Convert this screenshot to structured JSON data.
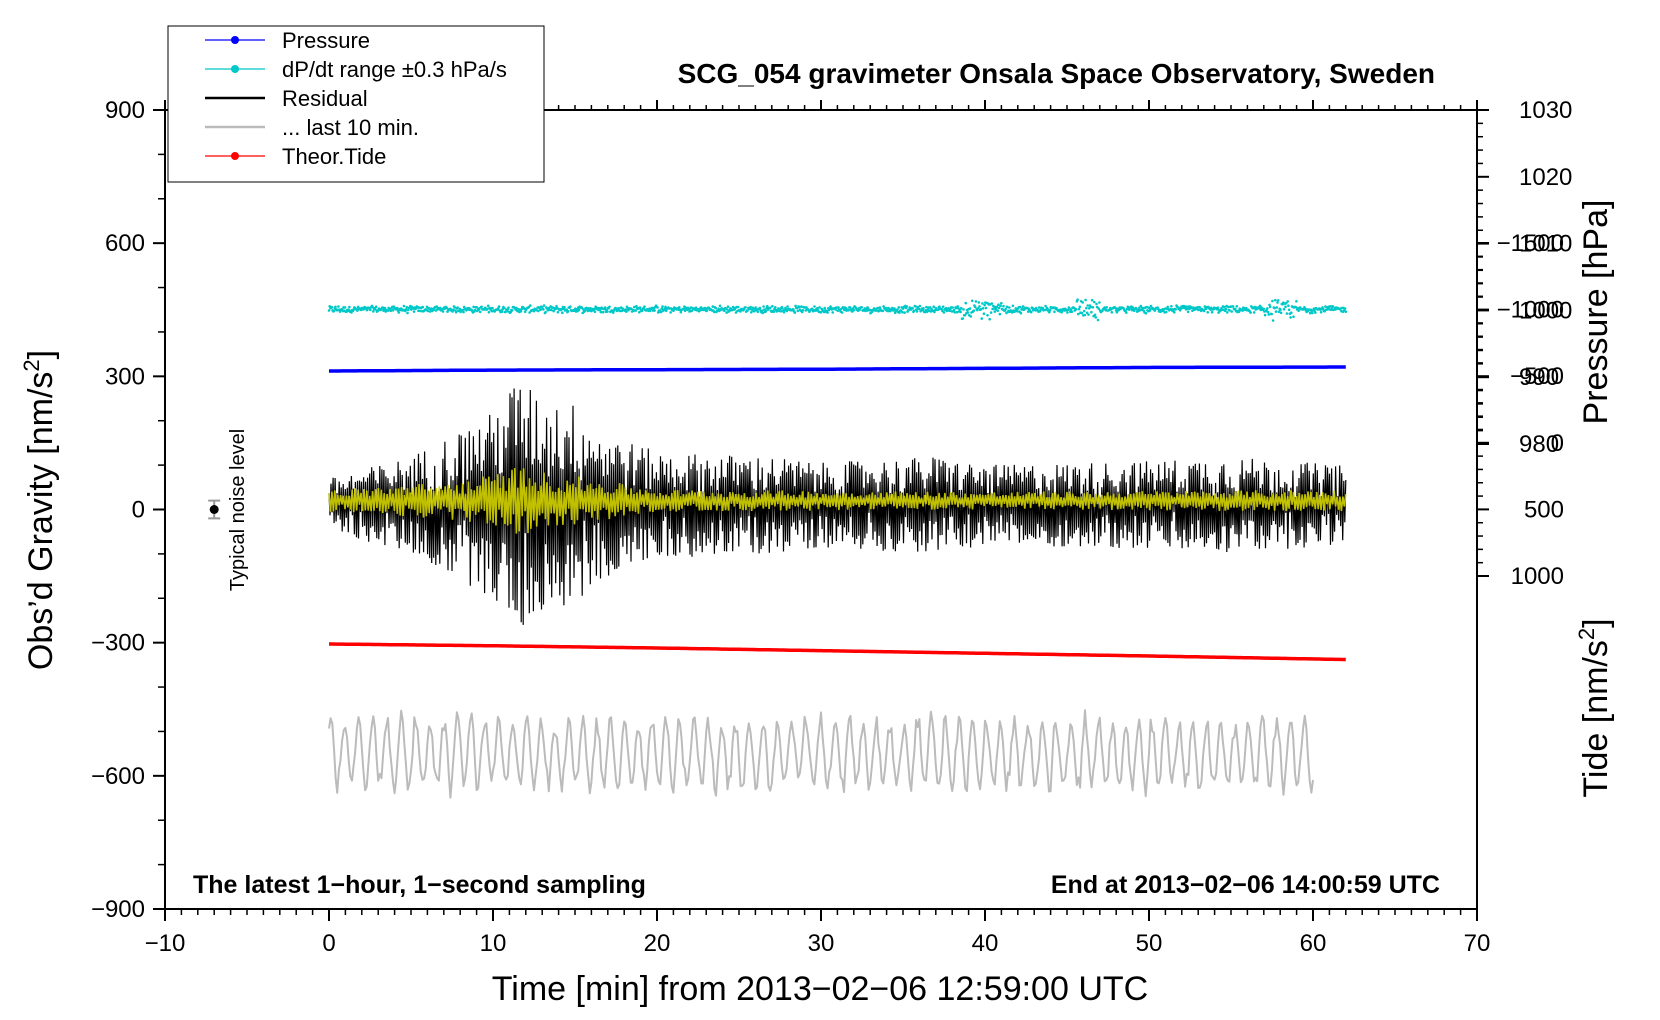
{
  "chart_data": {
    "type": "line",
    "title": "SCG_054 gravimeter Onsala Space Observatory, Sweden",
    "xlabel": "Time [min] from 2013−02−06 12:59:00 UTC",
    "ylabel_left": "Obs’d Gravity [nm/s",
    "ylabel_left_sup": "2",
    "ylabel_left_close": "]",
    "ylabel_right_pressure": "Pressure [hPa]",
    "ylabel_right_tide": "Tide [nm/s",
    "ylabel_right_tide_sup": "2",
    "ylabel_right_tide_close": "]",
    "xlim": [
      -10,
      70
    ],
    "ylim_left": [
      -900,
      900
    ],
    "x_ticks": [
      -10,
      0,
      10,
      20,
      30,
      40,
      50,
      60,
      70
    ],
    "x_tick_labels": [
      "−10",
      "0",
      "10",
      "20",
      "30",
      "40",
      "50",
      "60",
      "70"
    ],
    "y_ticks_left": [
      -900,
      -600,
      -300,
      0,
      300,
      600,
      900
    ],
    "y_tick_labels_left": [
      "−900",
      "−600",
      "−300",
      "0",
      "300",
      "600",
      "900"
    ],
    "pressure_ticks": [
      980,
      990,
      1000,
      1010,
      1020,
      1030
    ],
    "pressure_tick_labels": [
      "980",
      "990",
      "1000",
      "1010",
      "1020",
      "1030"
    ],
    "tide_ticks": [
      -1500,
      -1000,
      -500,
      0,
      500,
      1000
    ],
    "tide_tick_labels": [
      "−1500",
      "−1000",
      "−500",
      "0",
      "500",
      "1000"
    ],
    "legend_position": "top-left",
    "legend": [
      {
        "label": "Pressure",
        "color": "#0000ff",
        "marker": true
      },
      {
        "label": "dP/dt range ±0.3 hPa/s",
        "color": "#00c8c8",
        "marker": true
      },
      {
        "label": "Residual",
        "color": "#000000",
        "marker": false
      },
      {
        "label": "... last 10 min.",
        "color": "#bbbbbb",
        "marker": false
      },
      {
        "label": "Theor.Tide",
        "color": "#ff0000",
        "marker": true
      }
    ],
    "annotations": {
      "bottom_left": "The latest 1−hour, 1−second sampling",
      "bottom_right": "End at 2013−02−06 14:00:59 UTC",
      "noise_label": "Typical noise level"
    },
    "noise_marker": {
      "x": -7,
      "y": 0,
      "err": 20
    },
    "series": [
      {
        "name": "Pressure",
        "axis": "left",
        "color": "#0000ff",
        "x": [
          0,
          10,
          20,
          30,
          40,
          50,
          62
        ],
        "y": [
          312,
          314,
          315,
          316,
          318,
          320,
          321
        ]
      },
      {
        "name": "dP/dt range ±0.3 hPa/s",
        "axis": "left",
        "color": "#00c8c8",
        "x": [
          0,
          62
        ],
        "y": [
          451,
          451
        ]
      },
      {
        "name": "Theor.Tide",
        "axis": "left",
        "color": "#ff0000",
        "x": [
          0,
          10,
          20,
          30,
          40,
          50,
          62
        ],
        "y": [
          -303,
          -307,
          -312,
          -318,
          -324,
          -330,
          -338
        ]
      },
      {
        "name": "Residual",
        "axis": "left",
        "color": "#000000",
        "x_range": [
          0,
          62
        ],
        "center": 10,
        "envelope": [
          [
            0,
            60
          ],
          [
            5,
            110
          ],
          [
            8,
            170
          ],
          [
            10,
            210
          ],
          [
            11.5,
            290
          ],
          [
            13,
            240
          ],
          [
            15,
            230
          ],
          [
            16.5,
            170
          ],
          [
            20,
            120
          ],
          [
            27,
            110
          ],
          [
            30,
            95
          ],
          [
            37,
            110
          ],
          [
            40,
            90
          ],
          [
            45,
            95
          ],
          [
            50,
            100
          ],
          [
            55,
            110
          ],
          [
            58,
            100
          ],
          [
            62,
            90
          ]
        ]
      },
      {
        "name": "Residual (filtered)",
        "axis": "left",
        "color": "#d4d400",
        "x_range": [
          0,
          62
        ],
        "center": 20,
        "envelope": [
          [
            0,
            25
          ],
          [
            8,
            45
          ],
          [
            10,
            60
          ],
          [
            11.5,
            80
          ],
          [
            13,
            65
          ],
          [
            16,
            50
          ],
          [
            20,
            25
          ],
          [
            40,
            20
          ],
          [
            50,
            22
          ],
          [
            62,
            25
          ]
        ]
      },
      {
        "name": "... last 10 min.",
        "axis": "left",
        "color": "#bbbbbb",
        "x_range": [
          0,
          60
        ],
        "center": -550,
        "envelope": [
          [
            0,
            90
          ],
          [
            60,
            90
          ]
        ]
      }
    ]
  }
}
